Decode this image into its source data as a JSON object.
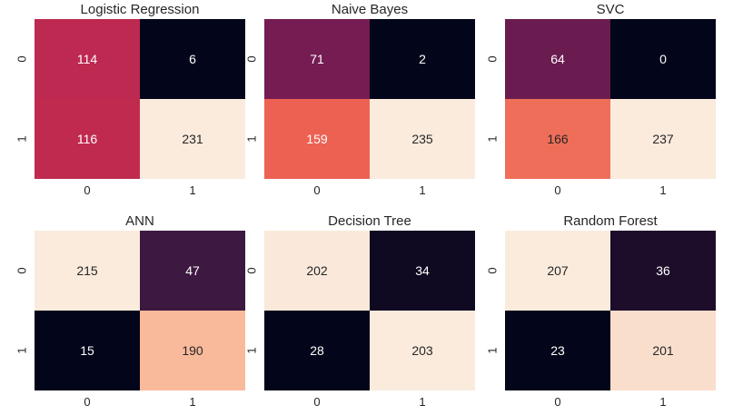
{
  "chart_data": [
    {
      "type": "heatmap",
      "title": "Logistic Regression",
      "x_categories": [
        "0",
        "1"
      ],
      "y_categories": [
        "0",
        "1"
      ],
      "values": [
        [
          114,
          6
        ],
        [
          116,
          231
        ]
      ],
      "colorbar": false
    },
    {
      "type": "heatmap",
      "title": "Naive Bayes",
      "x_categories": [
        "0",
        "1"
      ],
      "y_categories": [
        "0",
        "1"
      ],
      "values": [
        [
          71,
          2
        ],
        [
          159,
          235
        ]
      ],
      "colorbar": false
    },
    {
      "type": "heatmap",
      "title": "SVC",
      "x_categories": [
        "0",
        "1"
      ],
      "y_categories": [
        "0",
        "1"
      ],
      "values": [
        [
          64,
          0
        ],
        [
          166,
          237
        ]
      ],
      "colorbar": false
    },
    {
      "type": "heatmap",
      "title": "ANN",
      "x_categories": [
        "0",
        "1"
      ],
      "y_categories": [
        "0",
        "1"
      ],
      "values": [
        [
          215,
          47
        ],
        [
          15,
          190
        ]
      ],
      "colorbar": false
    },
    {
      "type": "heatmap",
      "title": "Decision Tree",
      "x_categories": [
        "0",
        "1"
      ],
      "y_categories": [
        "0",
        "1"
      ],
      "values": [
        [
          202,
          34
        ],
        [
          28,
          203
        ]
      ],
      "colorbar": false
    },
    {
      "type": "heatmap",
      "title": "Random Forest",
      "x_categories": [
        "0",
        "1"
      ],
      "y_categories": [
        "0",
        "1"
      ],
      "values": [
        [
          207,
          36
        ],
        [
          23,
          201
        ]
      ],
      "colorbar": false
    }
  ],
  "colormap": {
    "name": "rocket",
    "stops": [
      "#03051a",
      "#4c1d4b",
      "#a11a5b",
      "#e83f3f",
      "#f69c73",
      "#faebdd"
    ]
  }
}
